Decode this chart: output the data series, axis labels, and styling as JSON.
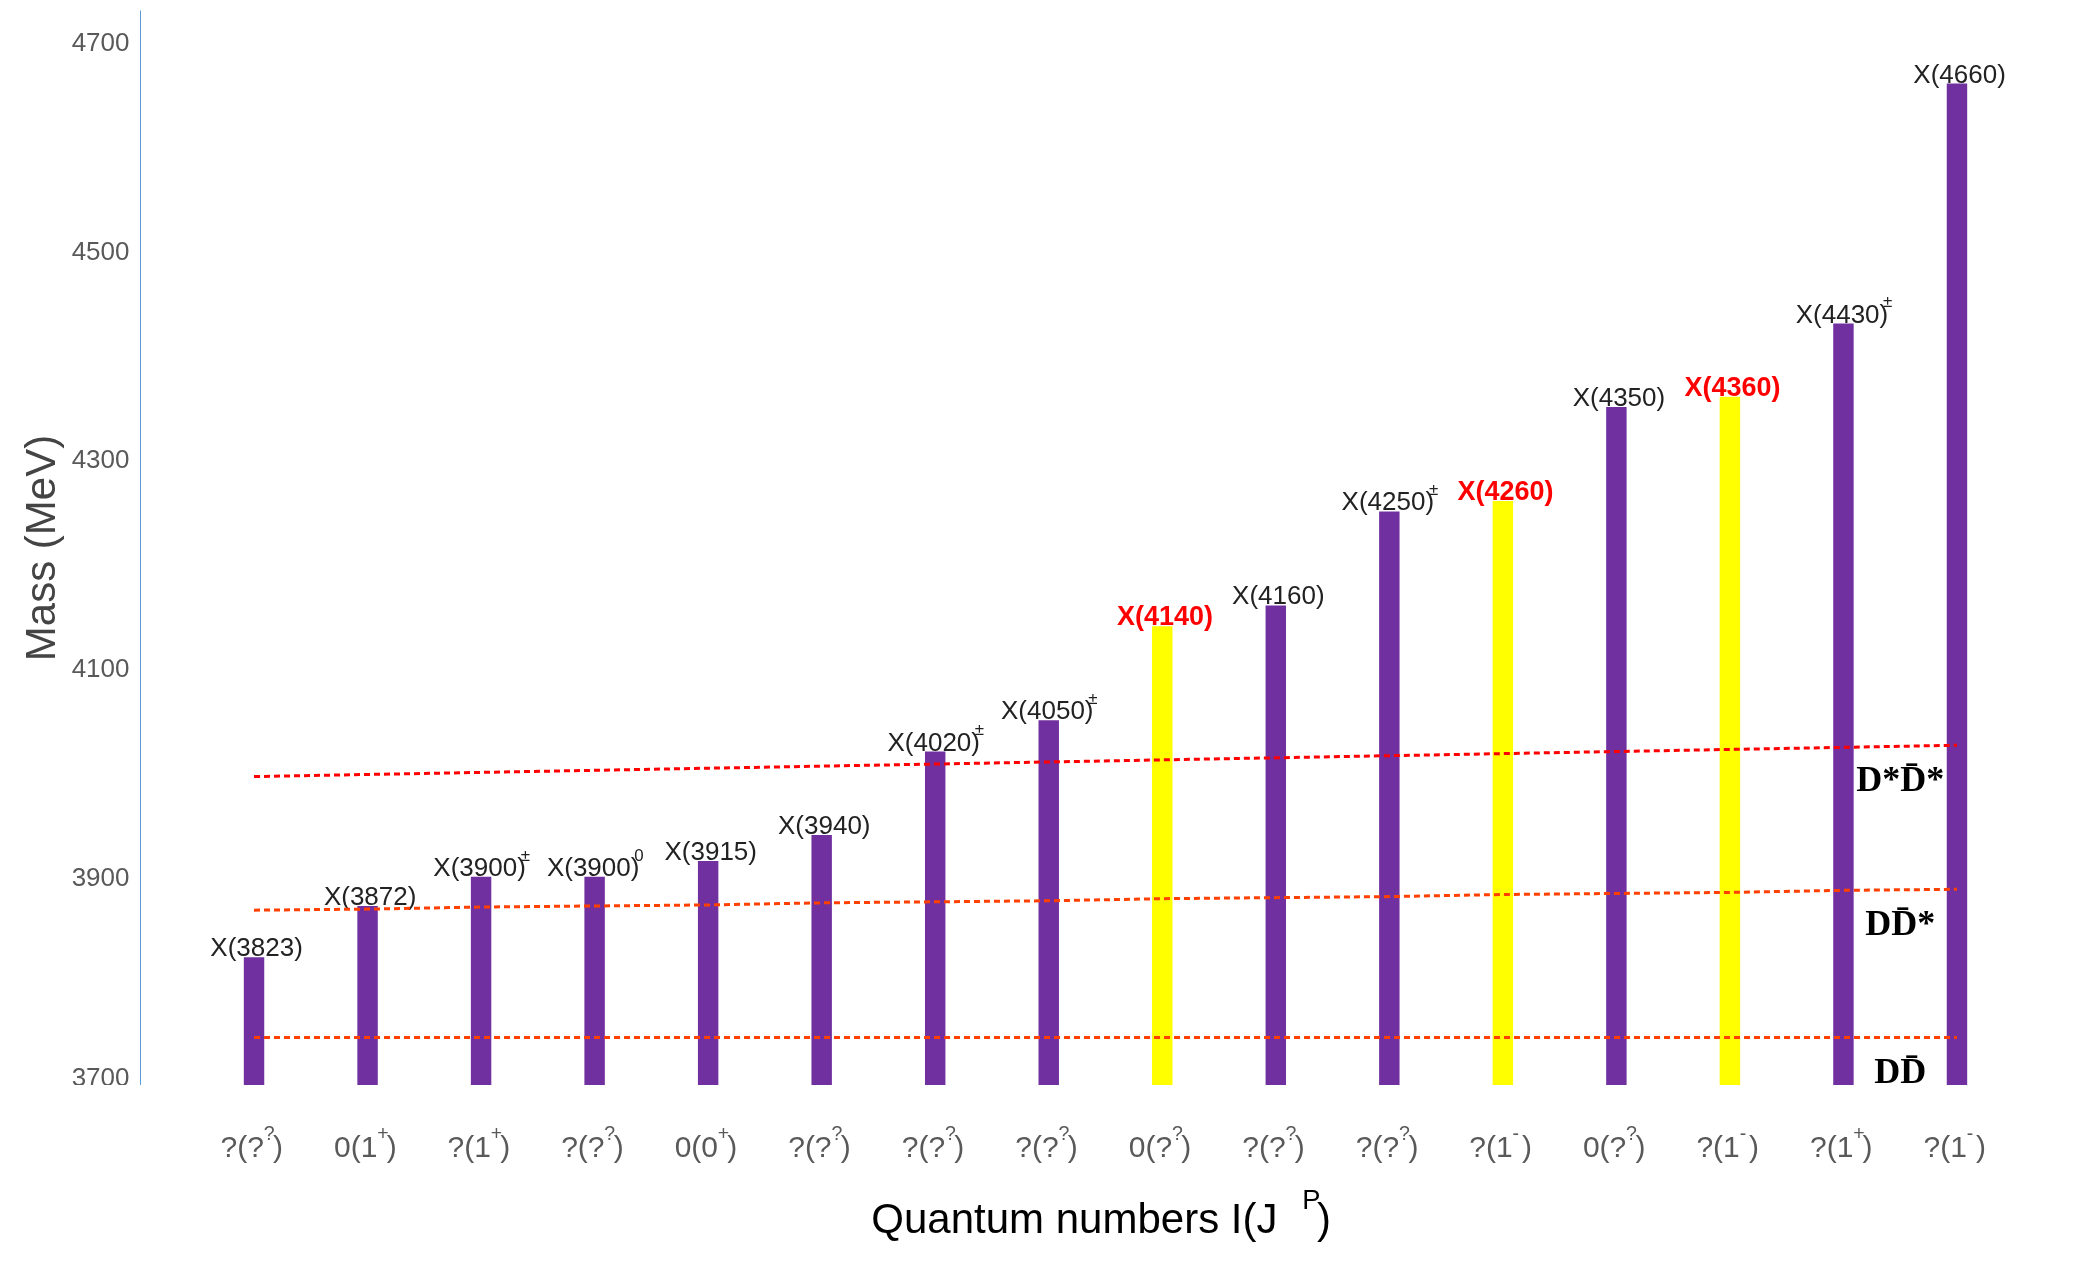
{
  "chart_data": {
    "type": "bar",
    "xlabel": "Quantum numbers I(J$^{P}$)",
    "ylabel": "Mass (MeV)",
    "categories": [
      "?(?$^{?}$)",
      "0(1$^{+}$)",
      "?(1$^{+}$)",
      "?(?$^{?}$)",
      "0(0$^{+}$)",
      "?(?$^{?}$)",
      "?(?$^{?}$)",
      "?(?$^{?}$)",
      "0(?$^{?}$)",
      "?(?$^{?}$)",
      "?(?$^{?}$)",
      "?(1$^{-}$)",
      "0(?$^{?}$)",
      "?(1$^{-}$)",
      "?(1$^{+}$)",
      "?(1$^{-}$)"
    ],
    "ylim": [
      3700,
      4730
    ],
    "yticks": [
      3700,
      3900,
      4100,
      4300,
      4500,
      4700
    ],
    "grid": false,
    "legend": false,
    "series": [
      {
        "color": "#7030a0",
        "values": [
          3823,
          3872,
          3900,
          3900,
          3915,
          3940,
          4020,
          4050,
          null,
          4160,
          4250,
          null,
          4350,
          null,
          4430,
          4660
        ],
        "value_labels": [
          "X(3823)",
          "X(3872)",
          "X(3900)$^{±}$",
          "X(3900)$^{0}$",
          "X(3915)",
          "X(3940)",
          "X(4020)$^{±}$",
          "X(4050)$^{±}$",
          null,
          "X(4160)",
          "X(4250)$^{±}$",
          null,
          "X(4350)",
          null,
          "X(4430)$^{±}$",
          "X(4660)"
        ]
      },
      {
        "color": "#ffff00",
        "values": [
          null,
          null,
          null,
          null,
          null,
          null,
          null,
          null,
          4140,
          null,
          null,
          4260,
          null,
          4360,
          null,
          null
        ],
        "value_labels": [
          null,
          null,
          null,
          null,
          null,
          null,
          null,
          null,
          "X(4140)",
          null,
          null,
          "X(4260)",
          null,
          "X(4360)",
          null,
          null
        ]
      },
      {
        "type": "line",
        "name": "D*D̄*",
        "color": "#ff0000",
        "line_style": "dashed",
        "values": [
          3996,
          3998,
          4000,
          4002,
          4004,
          4006,
          4008,
          4010,
          4012,
          4014,
          4016,
          4018,
          4020,
          4022,
          4024,
          4026
        ]
      },
      {
        "type": "line",
        "name": "DD̄*",
        "color": "#ff4000",
        "line_style": "dashed",
        "values": [
          3868,
          3869,
          3871,
          3872,
          3873,
          3875,
          3876,
          3877,
          3879,
          3880,
          3881,
          3883,
          3884,
          3885,
          3887,
          3888
        ]
      },
      {
        "type": "line",
        "name": "DD̄",
        "color": "#ff4000",
        "line_style": "dashed",
        "values": [
          3746,
          3746,
          3746,
          3746,
          3746,
          3746,
          3746,
          3746,
          3746,
          3746,
          3746,
          3746,
          3746,
          3746,
          3746,
          3746
        ]
      }
    ]
  }
}
